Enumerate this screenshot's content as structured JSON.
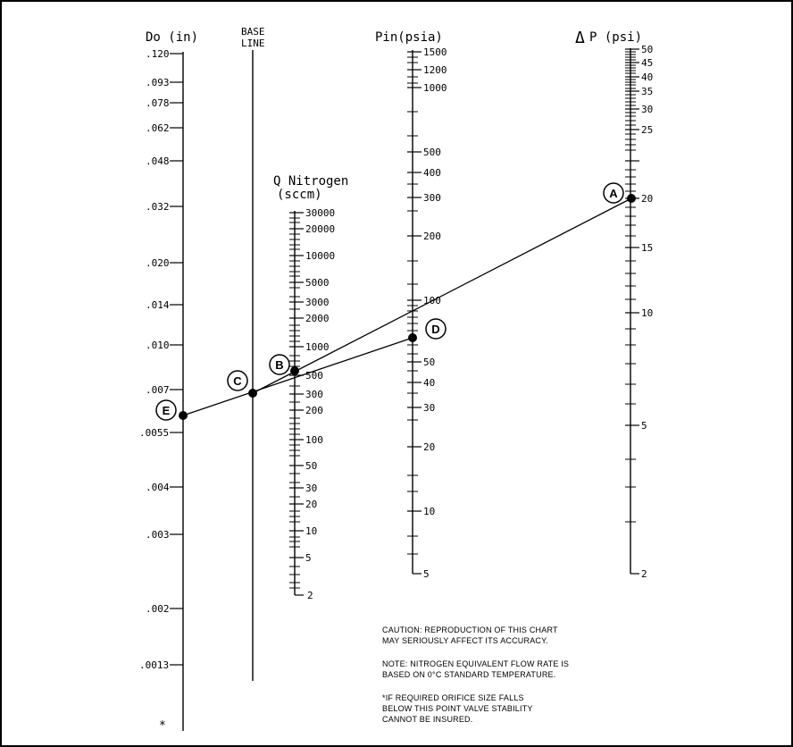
{
  "axes": {
    "do": {
      "title": "Do (in)",
      "ticks": [
        ".120",
        ".093",
        ".078",
        ".062",
        ".048",
        ".032",
        ".020",
        ".014",
        ".010",
        ".007",
        ".0055",
        ".004",
        ".003",
        ".002",
        ".0013"
      ],
      "asterisk": "*"
    },
    "base": {
      "title_line1": "BASE",
      "title_line2": "LINE"
    },
    "q": {
      "title_line1": "Q Nitrogen",
      "title_line2": "(sccm)",
      "ticks": [
        "30000",
        "20000",
        "10000",
        "5000",
        "3000",
        "2000",
        "1000",
        "500",
        "300",
        "200",
        "100",
        "50",
        "30",
        "20",
        "10",
        "5",
        "2"
      ]
    },
    "pin": {
      "title": "Pin(psia)",
      "ticks": [
        "1500",
        "1200",
        "1000",
        "500",
        "400",
        "300",
        "200",
        "100",
        "50",
        "40",
        "30",
        "20",
        "10",
        "5"
      ]
    },
    "dp": {
      "title": "P (psi)",
      "delta_symbol": "Δ",
      "ticks": [
        "50",
        "45",
        "40",
        "35",
        "30",
        "25",
        "20",
        "15",
        "10",
        "5",
        "2"
      ]
    }
  },
  "points": {
    "a": "A",
    "b": "B",
    "c": "C",
    "d": "D",
    "e": "E"
  },
  "notes": {
    "caution_line1": "CAUTION: REPRODUCTION OF THIS CHART",
    "caution_line2": "MAY SERIOUSLY AFFECT ITS ACCURACY.",
    "note_line1": "NOTE: NITROGEN EQUIVALENT FLOW RATE IS",
    "note_line2": "BASED ON 0°C STANDARD TEMPERATURE.",
    "star_line1": "*IF REQUIRED ORIFICE SIZE FALLS",
    "star_line2": "BELOW THIS POINT VALVE STABILITY",
    "star_line3": "CANNOT BE INSURED."
  }
}
